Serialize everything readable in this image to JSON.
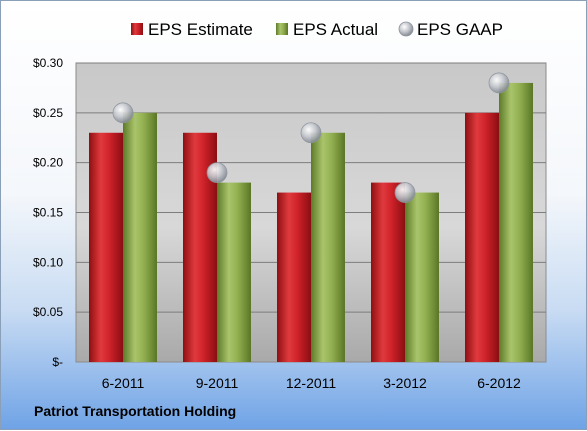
{
  "company": "Patriot Transportation Holding",
  "colors": {
    "estimate": "#c4161c",
    "actual": "#8cab4a",
    "gaap": "#b8bcc4"
  },
  "chart_data": {
    "type": "bar",
    "title": "",
    "xlabel": "",
    "ylabel": "",
    "categories": [
      "6-2011",
      "9-2011",
      "12-2011",
      "3-2012",
      "6-2012"
    ],
    "series": [
      {
        "name": "EPS Estimate",
        "kind": "bar",
        "values": [
          0.23,
          0.23,
          0.17,
          0.18,
          0.25
        ]
      },
      {
        "name": "EPS Actual",
        "kind": "bar",
        "values": [
          0.25,
          0.18,
          0.23,
          0.17,
          0.28
        ]
      },
      {
        "name": "EPS GAAP",
        "kind": "marker",
        "values": [
          0.25,
          0.19,
          0.23,
          0.17,
          0.28
        ]
      }
    ],
    "ylim": [
      0,
      0.3
    ],
    "yticks": [
      0,
      0.05,
      0.1,
      0.15,
      0.2,
      0.25,
      0.3
    ],
    "ytick_labels": [
      "$-",
      "$0.05",
      "$0.10",
      "$0.15",
      "$0.20",
      "$0.25",
      "$0.30"
    ],
    "grid": true,
    "legend_position": "top"
  }
}
